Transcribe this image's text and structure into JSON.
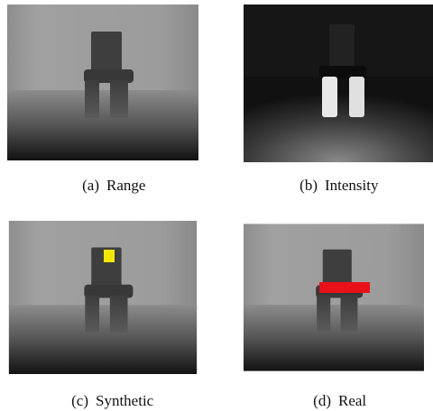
{
  "panels": [
    {
      "label": "(a)",
      "caption": "Range"
    },
    {
      "label": "(b)",
      "caption": "Intensity"
    },
    {
      "label": "(c)",
      "caption": "Synthetic"
    },
    {
      "label": "(d)",
      "caption": "Real"
    }
  ]
}
